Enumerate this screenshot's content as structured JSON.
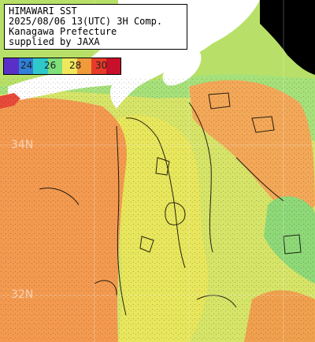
{
  "info": {
    "lines": [
      "HIMAWARI SST",
      "2025/08/06 13(UTC) 3H Comp.",
      "Kanagawa Prefecture",
      "supplied by JAXA"
    ]
  },
  "legend": {
    "labels": [
      "24",
      "26",
      "28",
      "30"
    ],
    "colors": [
      "#5a2fc8",
      "#2f7fd8",
      "#2fc8c8",
      "#7ee07a",
      "#f0e85a",
      "#f09a3a",
      "#e83a28",
      "#c8102a"
    ]
  },
  "latitude_labels": [
    "34N",
    "32N"
  ],
  "palette": {
    "warm_orange": "#f39a55",
    "orange": "#f2aa5a",
    "yellow": "#e8e65a",
    "yellow_green": "#c8e46a",
    "green": "#9ee07a",
    "land": "#ffffff",
    "no_data": "#000000"
  }
}
